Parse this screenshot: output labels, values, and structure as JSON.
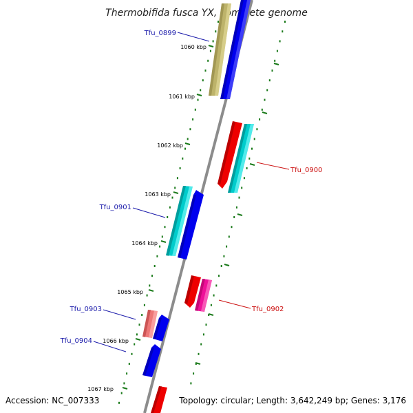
{
  "title": "Thermobifida fusca YX, complete genome",
  "accession": "Accession: NC_007333",
  "topology": "Topology: circular; Length: 3,642,249 bp; Genes: 3,176",
  "colors": {
    "backbone": "#8c8c8c",
    "tick": "#1a7a1a",
    "label_left": "#1a1aaa",
    "label_right": "#cc1111",
    "gene_blue": "#0000ee",
    "gene_red": "#ee0000",
    "gene_cyan": "#00cccc",
    "gene_olive": "#bdb36a",
    "gene_pink": "#ee1199",
    "gene_salmon": "#ee7777"
  },
  "kbp_labels": [
    "1060 kbp",
    "1061 kbp",
    "1062 kbp",
    "1063 kbp",
    "1064 kbp",
    "1065 kbp",
    "1066 kbp",
    "1067 kbp"
  ],
  "gene_labels": [
    {
      "id": "Tfu_0899",
      "side": "left"
    },
    {
      "id": "Tfu_0900",
      "side": "right"
    },
    {
      "id": "Tfu_0901",
      "side": "left"
    },
    {
      "id": "Tfu_0902",
      "side": "right"
    },
    {
      "id": "Tfu_0903",
      "side": "left"
    },
    {
      "id": "Tfu_0904",
      "side": "left"
    }
  ]
}
